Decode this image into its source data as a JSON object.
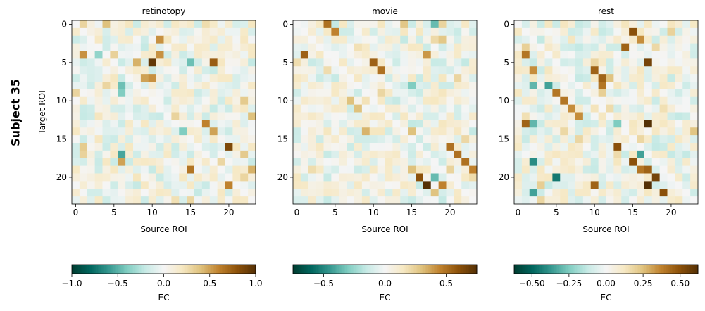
{
  "figure_label": "Subject 35",
  "chart_data": [
    {
      "type": "heatmap",
      "title": "retinotopy",
      "xlabel": "Source ROI",
      "ylabel": "Target ROI",
      "n": 24,
      "xticks": [
        0,
        5,
        10,
        15,
        20
      ],
      "yticks": [
        0,
        5,
        10,
        15,
        20
      ],
      "colormap": "BrBG_r",
      "vmin": -1.0,
      "vmax": 1.0,
      "colorbar_label": "EC",
      "colorbar_ticks": [
        "-1.0",
        "-0.5",
        "0.0",
        "0.5",
        "1.0"
      ],
      "colorbar_tick_values": [
        -1.0,
        -0.5,
        0.0,
        0.5,
        1.0
      ],
      "seed": 35,
      "strong_cells": [
        [
          5,
          10,
          0.95
        ],
        [
          5,
          18,
          0.75
        ],
        [
          5,
          15,
          -0.45
        ],
        [
          5,
          8,
          0.45
        ],
        [
          7,
          10,
          0.55
        ],
        [
          7,
          9,
          0.5
        ],
        [
          4,
          11,
          0.55
        ],
        [
          4,
          1,
          0.55
        ],
        [
          4,
          3,
          -0.35
        ],
        [
          8,
          6,
          -0.45
        ],
        [
          8,
          4,
          0.3
        ],
        [
          9,
          6,
          -0.4
        ],
        [
          13,
          17,
          0.6
        ],
        [
          14,
          18,
          0.5
        ],
        [
          16,
          20,
          0.85
        ],
        [
          17,
          6,
          -0.55
        ],
        [
          18,
          6,
          0.5
        ],
        [
          19,
          15,
          0.65
        ],
        [
          21,
          20,
          0.6
        ],
        [
          19,
          23,
          0.45
        ],
        [
          20,
          22,
          0.3
        ],
        [
          12,
          23,
          0.4
        ],
        [
          10,
          22,
          0.35
        ],
        [
          0,
          4,
          0.4
        ],
        [
          2,
          11,
          0.55
        ],
        [
          14,
          14,
          -0.4
        ]
      ]
    },
    {
      "type": "heatmap",
      "title": "movie",
      "xlabel": "Source ROI",
      "ylabel": "",
      "n": 24,
      "xticks": [
        0,
        5,
        10,
        15,
        20
      ],
      "yticks": [
        0,
        5,
        10,
        15,
        20
      ],
      "colormap": "BrBG_r",
      "vmin": -0.75,
      "vmax": 0.75,
      "colorbar_label": "EC",
      "colorbar_ticks": [
        "-0.5",
        "0.0",
        "0.5"
      ],
      "colorbar_tick_values": [
        -0.5,
        0.0,
        0.5
      ],
      "seed": 71,
      "strong_cells": [
        [
          0,
          4,
          0.5
        ],
        [
          1,
          5,
          0.45
        ],
        [
          0,
          18,
          -0.35
        ],
        [
          4,
          1,
          0.55
        ],
        [
          5,
          10,
          0.55
        ],
        [
          6,
          11,
          0.5
        ],
        [
          4,
          17,
          0.4
        ],
        [
          10,
          7,
          0.3
        ],
        [
          11,
          8,
          0.3
        ],
        [
          16,
          20,
          0.5
        ],
        [
          17,
          21,
          0.5
        ],
        [
          18,
          22,
          0.5
        ],
        [
          19,
          23,
          0.45
        ],
        [
          20,
          16,
          0.6
        ],
        [
          20,
          18,
          -0.35
        ],
        [
          21,
          17,
          0.75
        ],
        [
          21,
          19,
          0.45
        ],
        [
          19,
          15,
          0.3
        ],
        [
          14,
          15,
          0.3
        ],
        [
          8,
          15,
          -0.3
        ]
      ]
    },
    {
      "type": "heatmap",
      "title": "rest",
      "xlabel": "Source ROI",
      "ylabel": "",
      "n": 24,
      "xticks": [
        0,
        5,
        10,
        15,
        20
      ],
      "yticks": [
        0,
        5,
        10,
        15,
        20
      ],
      "colormap": "BrBG_r",
      "vmin": -0.62,
      "vmax": 0.62,
      "colorbar_label": "EC",
      "colorbar_ticks": [
        "-0.50",
        "-0.25",
        "0.00",
        "0.25",
        "0.50"
      ],
      "colorbar_tick_values": [
        -0.5,
        -0.25,
        0.0,
        0.25,
        0.5
      ],
      "seed": 113,
      "strong_cells": [
        [
          1,
          15,
          0.5
        ],
        [
          2,
          16,
          0.35
        ],
        [
          3,
          14,
          0.45
        ],
        [
          4,
          1,
          0.4
        ],
        [
          5,
          17,
          0.55
        ],
        [
          6,
          10,
          0.45
        ],
        [
          7,
          11,
          0.45
        ],
        [
          8,
          11,
          0.4
        ],
        [
          8,
          4,
          -0.35
        ],
        [
          9,
          5,
          0.4
        ],
        [
          10,
          6,
          0.4
        ],
        [
          11,
          7,
          0.35
        ],
        [
          12,
          8,
          0.35
        ],
        [
          13,
          13,
          -0.25
        ],
        [
          13,
          1,
          0.45
        ],
        [
          13,
          2,
          -0.3
        ],
        [
          13,
          17,
          0.62
        ],
        [
          16,
          13,
          0.5
        ],
        [
          18,
          15,
          0.5
        ],
        [
          19,
          17,
          0.45
        ],
        [
          20,
          18,
          0.55
        ],
        [
          21,
          17,
          0.62
        ],
        [
          22,
          19,
          0.5
        ],
        [
          20,
          5,
          -0.45
        ],
        [
          22,
          2,
          -0.35
        ],
        [
          18,
          2,
          -0.4
        ],
        [
          17,
          16,
          -0.35
        ],
        [
          21,
          10,
          0.45
        ],
        [
          8,
          2,
          -0.3
        ],
        [
          6,
          2,
          0.35
        ],
        [
          19,
          16,
          0.4
        ]
      ]
    }
  ]
}
